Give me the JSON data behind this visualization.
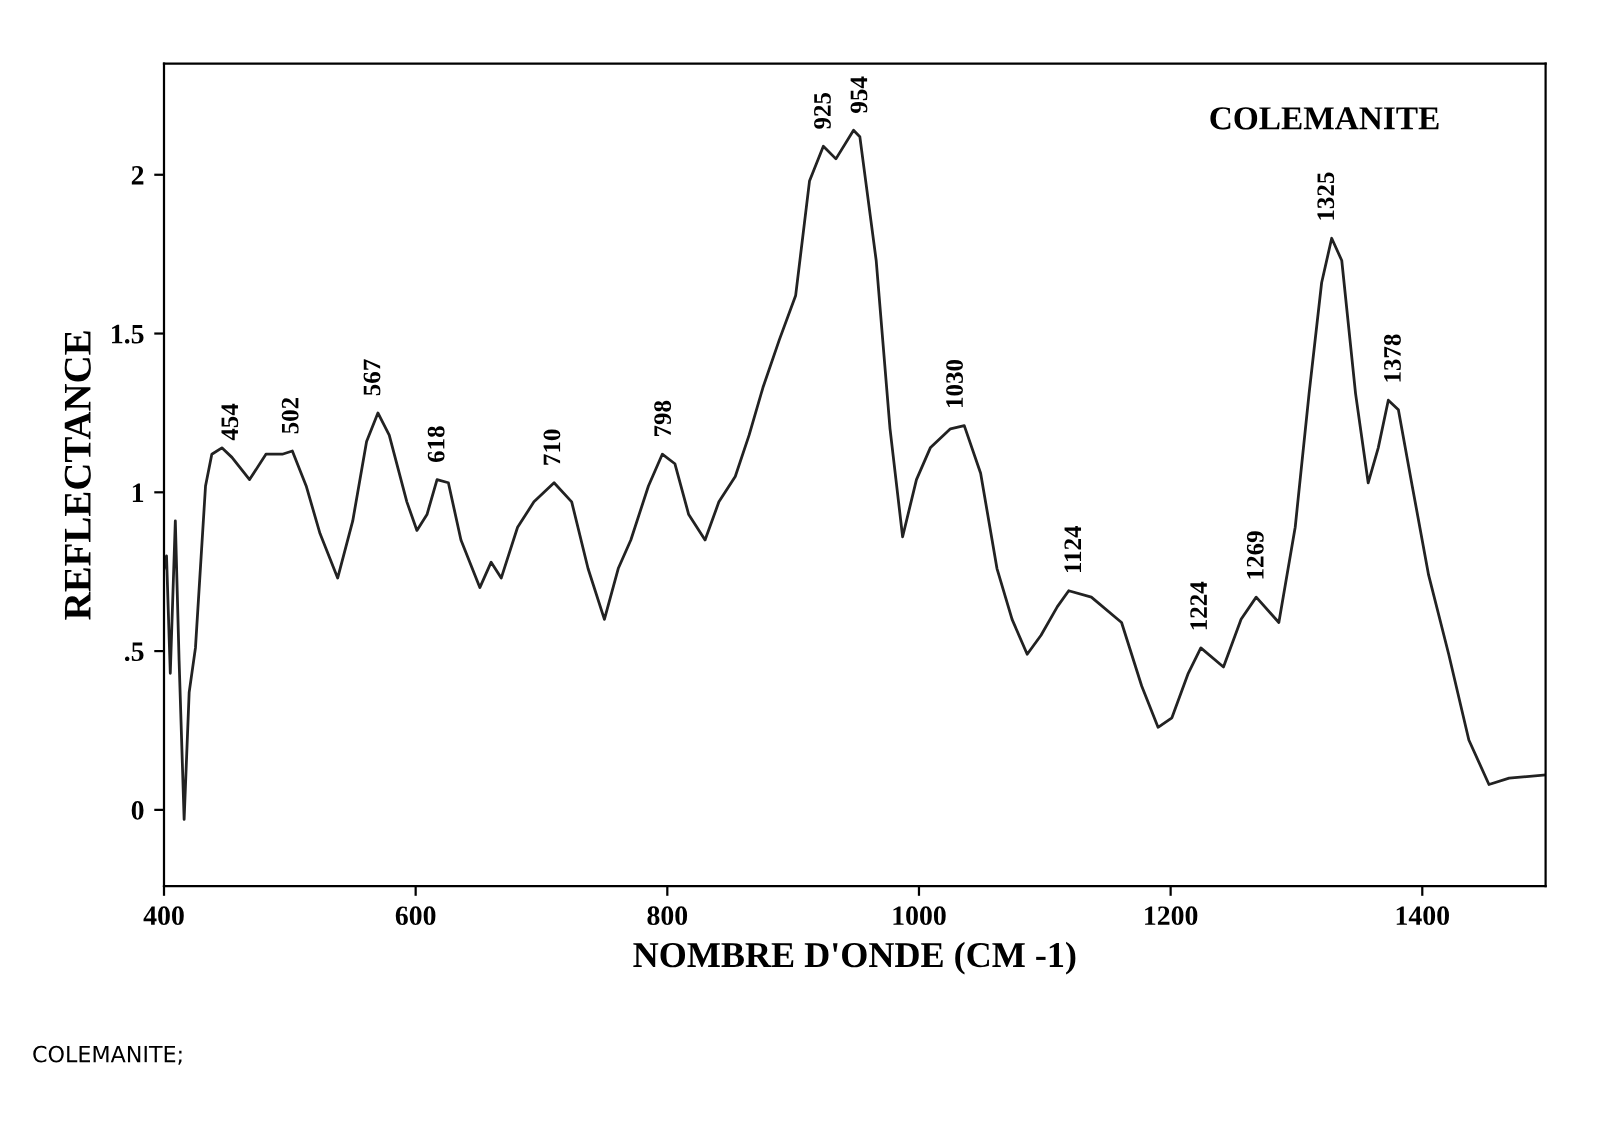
{
  "chart_data": {
    "type": "line",
    "title": "COLEMANITE",
    "xlabel": "NOMBRE D'ONDE (CM -1)",
    "ylabel": "REFLECTANCE",
    "x": [
      400,
      402,
      405,
      409,
      412,
      416,
      420,
      425,
      433,
      438,
      446,
      454,
      468,
      481,
      489,
      494,
      502,
      513,
      524,
      538,
      550,
      561,
      570,
      579,
      593,
      601,
      609,
      617,
      626,
      636,
      651,
      660,
      668,
      681,
      694,
      710,
      724,
      737,
      750,
      761,
      771,
      785,
      796,
      806,
      817,
      830,
      841,
      854,
      865,
      876,
      889,
      902,
      913,
      924,
      934,
      948,
      953,
      966,
      977,
      987,
      998,
      1009,
      1025,
      1036,
      1049,
      1062,
      1074,
      1086,
      1097,
      1110,
      1119,
      1137,
      1161,
      1177,
      1190,
      1201,
      1214,
      1224,
      1242,
      1256,
      1268,
      1286,
      1299,
      1310,
      1320,
      1328,
      1336,
      1347,
      1357,
      1365,
      1373,
      1381,
      1392,
      1405,
      1421,
      1437,
      1453,
      1469,
      1498
    ],
    "series": [
      {
        "color": "#222222",
        "values": [
          0.76,
          0.8,
          0.43,
          0.91,
          0.47,
          -0.03,
          0.37,
          0.51,
          1.02,
          1.12,
          1.14,
          1.11,
          1.04,
          1.12,
          1.12,
          1.12,
          1.13,
          1.02,
          0.87,
          0.73,
          0.91,
          1.16,
          1.25,
          1.18,
          0.97,
          0.88,
          0.93,
          1.04,
          1.03,
          0.85,
          0.7,
          0.78,
          0.73,
          0.89,
          0.97,
          1.03,
          0.97,
          0.76,
          0.6,
          0.76,
          0.85,
          1.02,
          1.12,
          1.09,
          0.93,
          0.85,
          0.97,
          1.05,
          1.18,
          1.33,
          1.48,
          1.62,
          1.98,
          2.09,
          2.05,
          2.14,
          2.12,
          1.73,
          1.2,
          0.86,
          1.04,
          1.14,
          1.2,
          1.21,
          1.06,
          0.76,
          0.6,
          0.49,
          0.55,
          0.64,
          0.69,
          0.67,
          0.59,
          0.39,
          0.26,
          0.29,
          0.43,
          0.51,
          0.45,
          0.6,
          0.67,
          0.59,
          0.89,
          1.31,
          1.66,
          1.8,
          1.73,
          1.31,
          1.03,
          1.14,
          1.29,
          1.26,
          1.02,
          0.74,
          0.49,
          0.22,
          0.08,
          0.1,
          0.11
        ]
      }
    ],
    "xlim": [
      400,
      1498
    ],
    "ylim": [
      -0.24,
      2.35
    ],
    "xticks": [
      400,
      600,
      800,
      1000,
      1200,
      1400
    ],
    "yticks": [
      0,
      {
        "value": 0.5,
        "label": ".5"
      },
      1,
      1.5,
      2
    ],
    "grid": false,
    "legend": false,
    "annotations": [
      {
        "text": "454",
        "x": 454,
        "y": 1.11
      },
      {
        "text": "502",
        "x": 502,
        "y": 1.13
      },
      {
        "text": "567",
        "x": 567,
        "y": 1.25
      },
      {
        "text": "618",
        "x": 618,
        "y": 1.04
      },
      {
        "text": "710",
        "x": 710,
        "y": 1.03
      },
      {
        "text": "798",
        "x": 798,
        "y": 1.12
      },
      {
        "text": "925",
        "x": 925,
        "y": 2.09
      },
      {
        "text": "954",
        "x": 954,
        "y": 2.14
      },
      {
        "text": "1030",
        "x": 1030,
        "y": 1.21
      },
      {
        "text": "1124",
        "x": 1124,
        "y": 0.69
      },
      {
        "text": "1224",
        "x": 1224,
        "y": 0.51
      },
      {
        "text": "1269",
        "x": 1269,
        "y": 0.67
      },
      {
        "text": "1325",
        "x": 1325,
        "y": 1.8
      },
      {
        "text": "1378",
        "x": 1378,
        "y": 1.29
      },
      "COLEMANITE;"
    ]
  }
}
